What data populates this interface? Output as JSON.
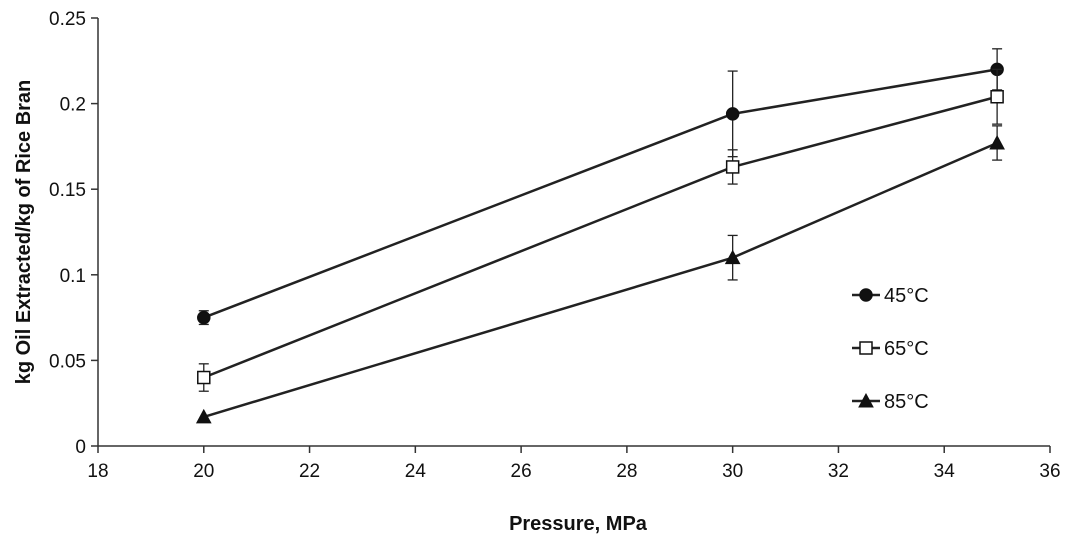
{
  "chart_data": {
    "type": "line",
    "xlabel": "Pressure, MPa",
    "ylabel": "kg Oil Extracted/kg of Rice Bran",
    "xlim": [
      18,
      36
    ],
    "ylim": [
      0,
      0.25
    ],
    "x_ticks": [
      "18",
      "20",
      "22",
      "24",
      "26",
      "28",
      "30",
      "32",
      "34",
      "36"
    ],
    "y_ticks": [
      "0",
      "0.05",
      "0.1",
      "0.15",
      "0.2",
      "0.25"
    ],
    "grid": false,
    "legend_position": "right",
    "series": [
      {
        "name": "45°C",
        "marker": "circle-filled",
        "x": [
          20,
          30,
          35
        ],
        "y": [
          0.075,
          0.194,
          0.22
        ],
        "error": [
          0.004,
          0.025,
          0.012
        ]
      },
      {
        "name": "65°C",
        "marker": "square-open",
        "x": [
          20,
          30,
          35
        ],
        "y": [
          0.04,
          0.163,
          0.204
        ],
        "error": [
          0.008,
          0.01,
          0.016
        ]
      },
      {
        "name": "85°C",
        "marker": "triangle-filled",
        "x": [
          20,
          30,
          35
        ],
        "y": [
          0.017,
          0.11,
          0.177
        ],
        "error": [
          0.0,
          0.013,
          0.01
        ]
      }
    ]
  }
}
